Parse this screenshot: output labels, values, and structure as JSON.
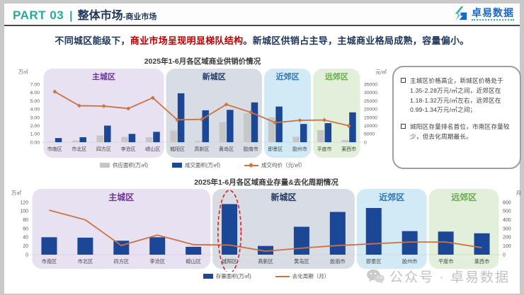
{
  "header": {
    "part": "PART 03",
    "separator": "|",
    "title": "整体市场",
    "title_suffix": "-商业市场",
    "logo_text": "卓易数据"
  },
  "headline": {
    "prefix": "不同城区能级下，",
    "highlight": "商业市场呈现明显梯队结构",
    "suffix": "。新城区供销占主导，主城商业格局成熟，容量偏小。"
  },
  "insight_panel": {
    "bullets": [
      "主城区价格高企，新城区价格处于1.35-2.28万元/㎡之间，近郊区在1.18-1.32万元/㎡左右，远郊区在0.99-1.34万元/㎡之间；",
      "城阳区存量排名首位，市南区存量较少，但去化周期最长。"
    ]
  },
  "footer": {
    "watermark": "公众号 · 卓易数据"
  },
  "colors": {
    "bar_blue": "#1b4796",
    "bar_gray": "#c6c6c6",
    "line_orange": "#cd7342",
    "accent_teal": "#29a89b",
    "navy": "#20375c",
    "red": "#c00000"
  },
  "chart_data": [
    {
      "type": "bar+line",
      "title": "2025年1-6月各区域商业供销价情况",
      "left_axis": {
        "unit": "万㎡",
        "max": 7,
        "ticks": [
          "7.00",
          "6.00",
          "5.00",
          "4.00",
          "3.00",
          "2.00",
          "1.00",
          "0.00"
        ]
      },
      "right_axis": {
        "unit": "元/㎡",
        "max": 35000,
        "ticks": [
          "35000",
          "30000",
          "25000",
          "20000",
          "15000",
          "10000",
          "5000",
          "0"
        ]
      },
      "categories": [
        "市南区",
        "市北区",
        "四方区",
        "李沧区",
        "崂山区",
        "城阳区",
        "高新区",
        "黄岛区",
        "胶南市",
        "即墨区",
        "胶州市",
        "平度市",
        "莱西市"
      ],
      "regions": [
        {
          "name": "主城区",
          "start": 0,
          "count": 5,
          "bg": "#e8e1f1",
          "label_color": "#7030a0"
        },
        {
          "name": "新城区",
          "start": 5,
          "count": 4,
          "bg": "#d8dce5",
          "label_color": "#1f3864"
        },
        {
          "name": "近郊区",
          "start": 9,
          "count": 2,
          "bg": "#d2e9f6",
          "label_color": "#2e75b6"
        },
        {
          "name": "远郊区",
          "start": 11,
          "count": 2,
          "bg": "#e2efda",
          "label_color": "#6aa84f"
        }
      ],
      "series": [
        {
          "name": "供应面积(万㎡)",
          "kind": "bar",
          "axis": "left",
          "color": "#c6c6c6",
          "values": [
            0.05,
            0.2,
            0.8,
            0.65,
            0.6,
            1.4,
            0.15,
            2.4,
            3.5,
            3.0,
            0.65,
            1.45,
            0.25
          ]
        },
        {
          "name": "成交面积(万㎡)",
          "kind": "bar",
          "axis": "left",
          "color": "#1b4796",
          "values": [
            0.5,
            0.6,
            2.0,
            1.0,
            1.25,
            5.9,
            3.85,
            3.9,
            4.8,
            4.3,
            2.2,
            2.3,
            3.6
          ]
        },
        {
          "name": "成交均价（元/㎡）",
          "kind": "line",
          "axis": "right",
          "color": "#cd7342",
          "values": [
            30500,
            22000,
            21800,
            20300,
            26800,
            13500,
            13800,
            22800,
            18000,
            11800,
            13200,
            13400,
            9900
          ]
        }
      ],
      "legend_position": "bottom"
    },
    {
      "type": "bar+line",
      "title": "2025年1-6月各区域商业存量&去化周期情况",
      "left_axis": {
        "unit": "万㎡",
        "max": 120,
        "ticks": [
          "120",
          "100",
          "80",
          "60",
          "40",
          "20",
          "0"
        ]
      },
      "right_axis": {
        "unit": "月",
        "max": 600,
        "ticks": [
          "600",
          "500",
          "400",
          "300",
          "200",
          "100",
          "0"
        ]
      },
      "categories": [
        "市南区",
        "市北区",
        "四方区",
        "李沧区",
        "崂山区",
        "城阳区",
        "高新区",
        "黄岛区",
        "胶南市",
        "即墨区",
        "胶州市",
        "平度市",
        "莱西市"
      ],
      "regions": [
        {
          "name": "主城区",
          "start": 0,
          "count": 5,
          "bg": "#e8e1f1",
          "label_color": "#7030a0"
        },
        {
          "name": "新城区",
          "start": 5,
          "count": 4,
          "bg": "#d8dce5",
          "label_color": "#1f3864"
        },
        {
          "name": "近郊区",
          "start": 9,
          "count": 2,
          "bg": "#d2e9f6",
          "label_color": "#2e75b6"
        },
        {
          "name": "远郊区",
          "start": 11,
          "count": 2,
          "bg": "#e2efda",
          "label_color": "#6aa84f"
        }
      ],
      "series": [
        {
          "name": "存量面积(万㎡)",
          "kind": "bar",
          "axis": "left",
          "color": "#1b4796",
          "values": [
            40,
            39,
            32,
            40,
            18,
            116,
            20,
            64,
            98,
            107,
            54,
            53,
            49
          ]
        },
        {
          "name": "去化周期（月）",
          "kind": "line",
          "axis": "right",
          "color": "#cd7342",
          "values": [
            510,
            400,
            105,
            225,
            115,
            110,
            40,
            75,
            105,
            125,
            145,
            145,
            80
          ]
        }
      ],
      "annotation": {
        "type": "dashed-ellipse",
        "category": "城阳区",
        "category_index": 5,
        "color": "#e02020"
      },
      "legend_position": "bottom"
    }
  ]
}
